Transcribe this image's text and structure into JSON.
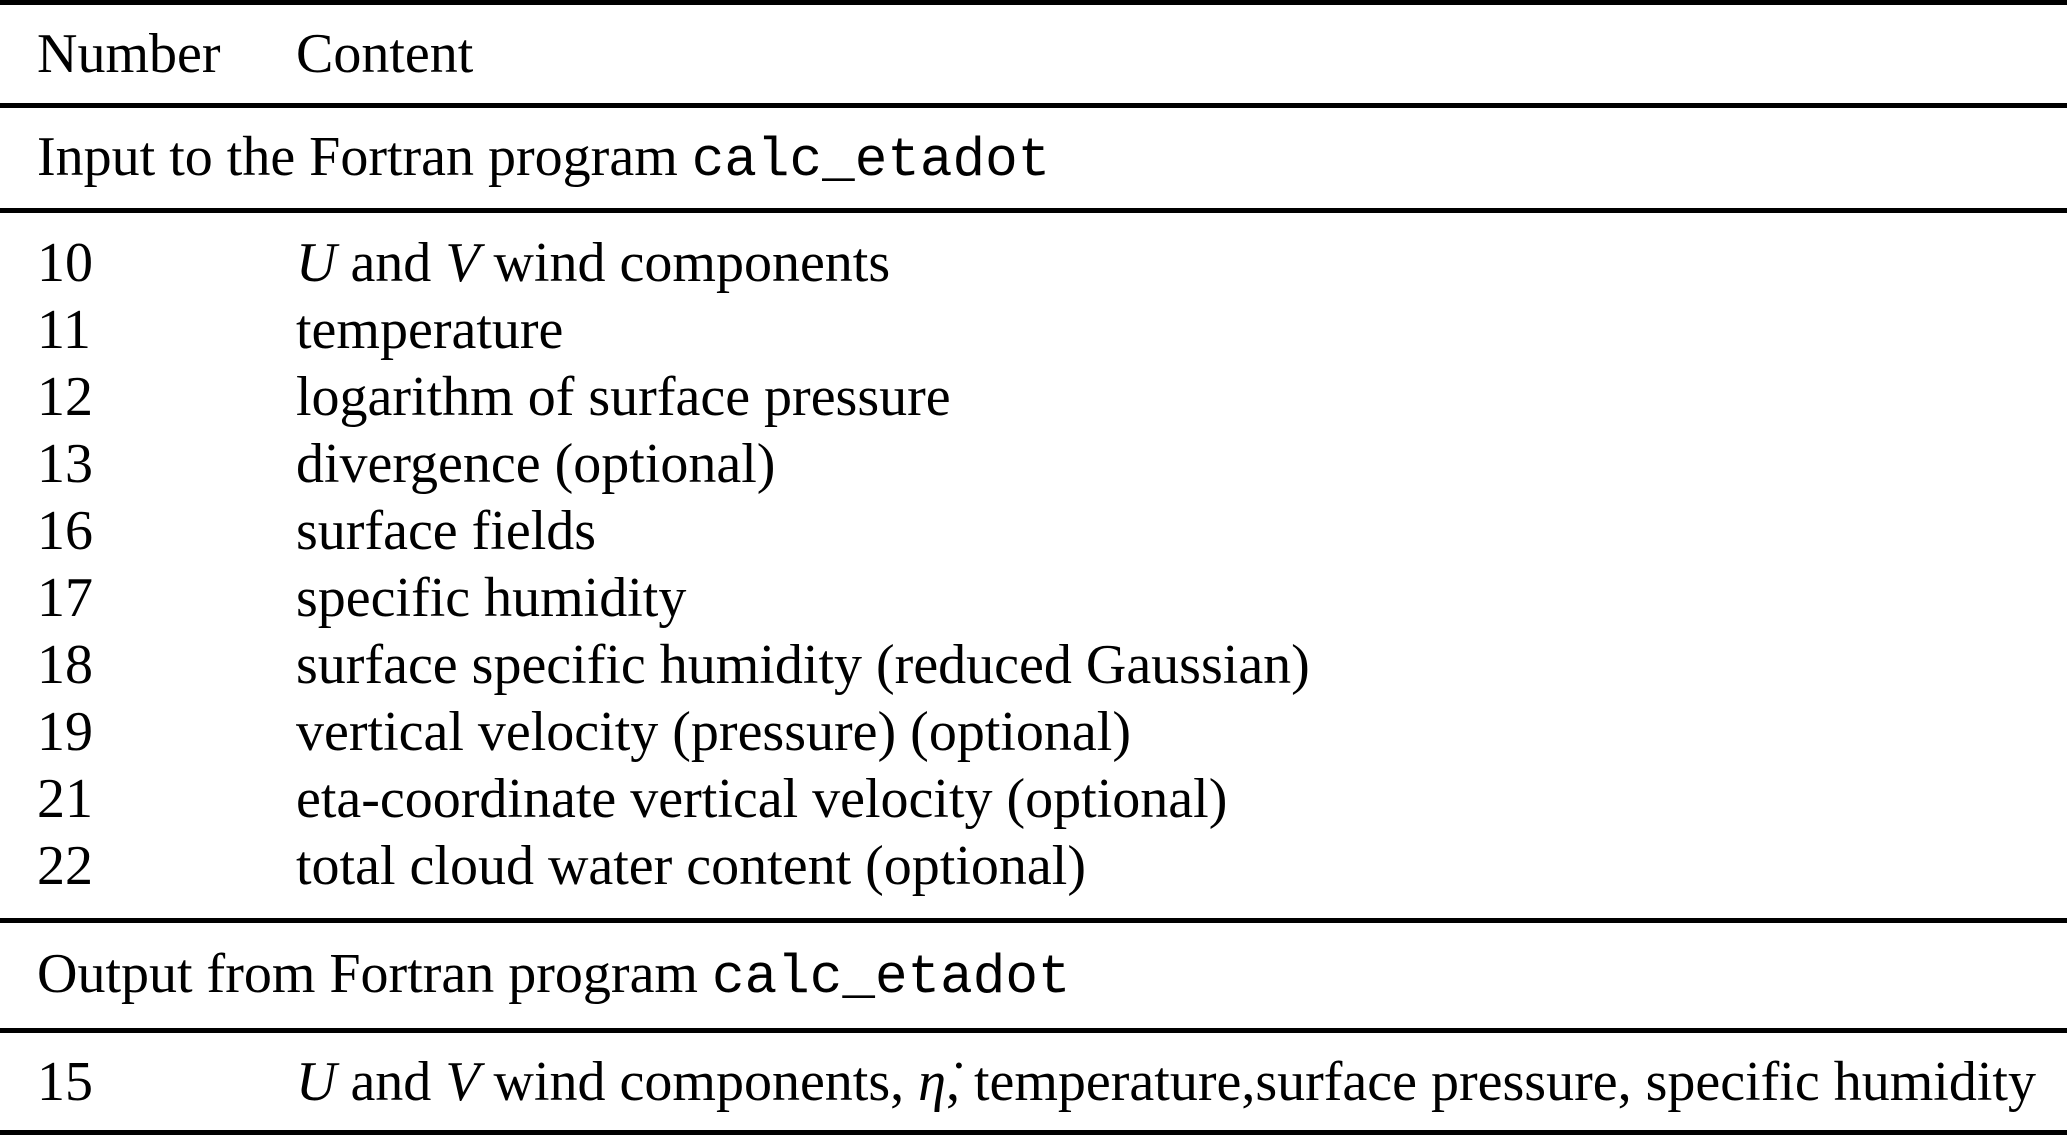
{
  "page": {
    "background": "#ffffff",
    "text_color": "#000000",
    "rule_color": "#000000"
  },
  "table": {
    "columns": [
      {
        "label": "Number"
      },
      {
        "label": "Content"
      }
    ],
    "sections": [
      {
        "header": [
          {
            "t": "Input to the Fortran program ",
            "s": "plain"
          },
          {
            "t": "calc_etadot",
            "s": "mono"
          }
        ],
        "rows": [
          {
            "number": "10",
            "content": [
              {
                "t": "U",
                "s": "italic"
              },
              {
                "t": " and ",
                "s": "plain"
              },
              {
                "t": "V",
                "s": "italic"
              },
              {
                "t": " wind components",
                "s": "plain"
              }
            ]
          },
          {
            "number": "11",
            "content": [
              {
                "t": "temperature",
                "s": "plain"
              }
            ]
          },
          {
            "number": "12",
            "content": [
              {
                "t": "logarithm of surface pressure",
                "s": "plain"
              }
            ]
          },
          {
            "number": "13",
            "content": [
              {
                "t": "divergence (optional)",
                "s": "plain"
              }
            ]
          },
          {
            "number": "16",
            "content": [
              {
                "t": "surface fields",
                "s": "plain"
              }
            ]
          },
          {
            "number": "17",
            "content": [
              {
                "t": "specific humidity",
                "s": "plain"
              }
            ]
          },
          {
            "number": "18",
            "content": [
              {
                "t": "surface specific humidity (reduced Gaussian)",
                "s": "plain"
              }
            ]
          },
          {
            "number": "19",
            "content": [
              {
                "t": "vertical velocity (pressure) (optional)",
                "s": "plain"
              }
            ]
          },
          {
            "number": "21",
            "content": [
              {
                "t": "eta-coordinate vertical velocity (optional)",
                "s": "plain"
              }
            ]
          },
          {
            "number": "22",
            "content": [
              {
                "t": "total cloud water content (optional)",
                "s": "plain"
              }
            ]
          }
        ]
      },
      {
        "header": [
          {
            "t": "Output from Fortran program ",
            "s": "plain"
          },
          {
            "t": "calc_etadot",
            "s": "mono"
          }
        ],
        "rows": [
          {
            "number": "15",
            "content": [
              {
                "t": "U",
                "s": "italic"
              },
              {
                "t": " and ",
                "s": "plain"
              },
              {
                "t": "V",
                "s": "italic"
              },
              {
                "t": " wind components, ",
                "s": "plain"
              },
              {
                "t": "η̇",
                "s": "italic"
              },
              {
                "t": ", temperature,surface pressure, specific humidity",
                "s": "plain"
              }
            ]
          }
        ]
      }
    ]
  }
}
